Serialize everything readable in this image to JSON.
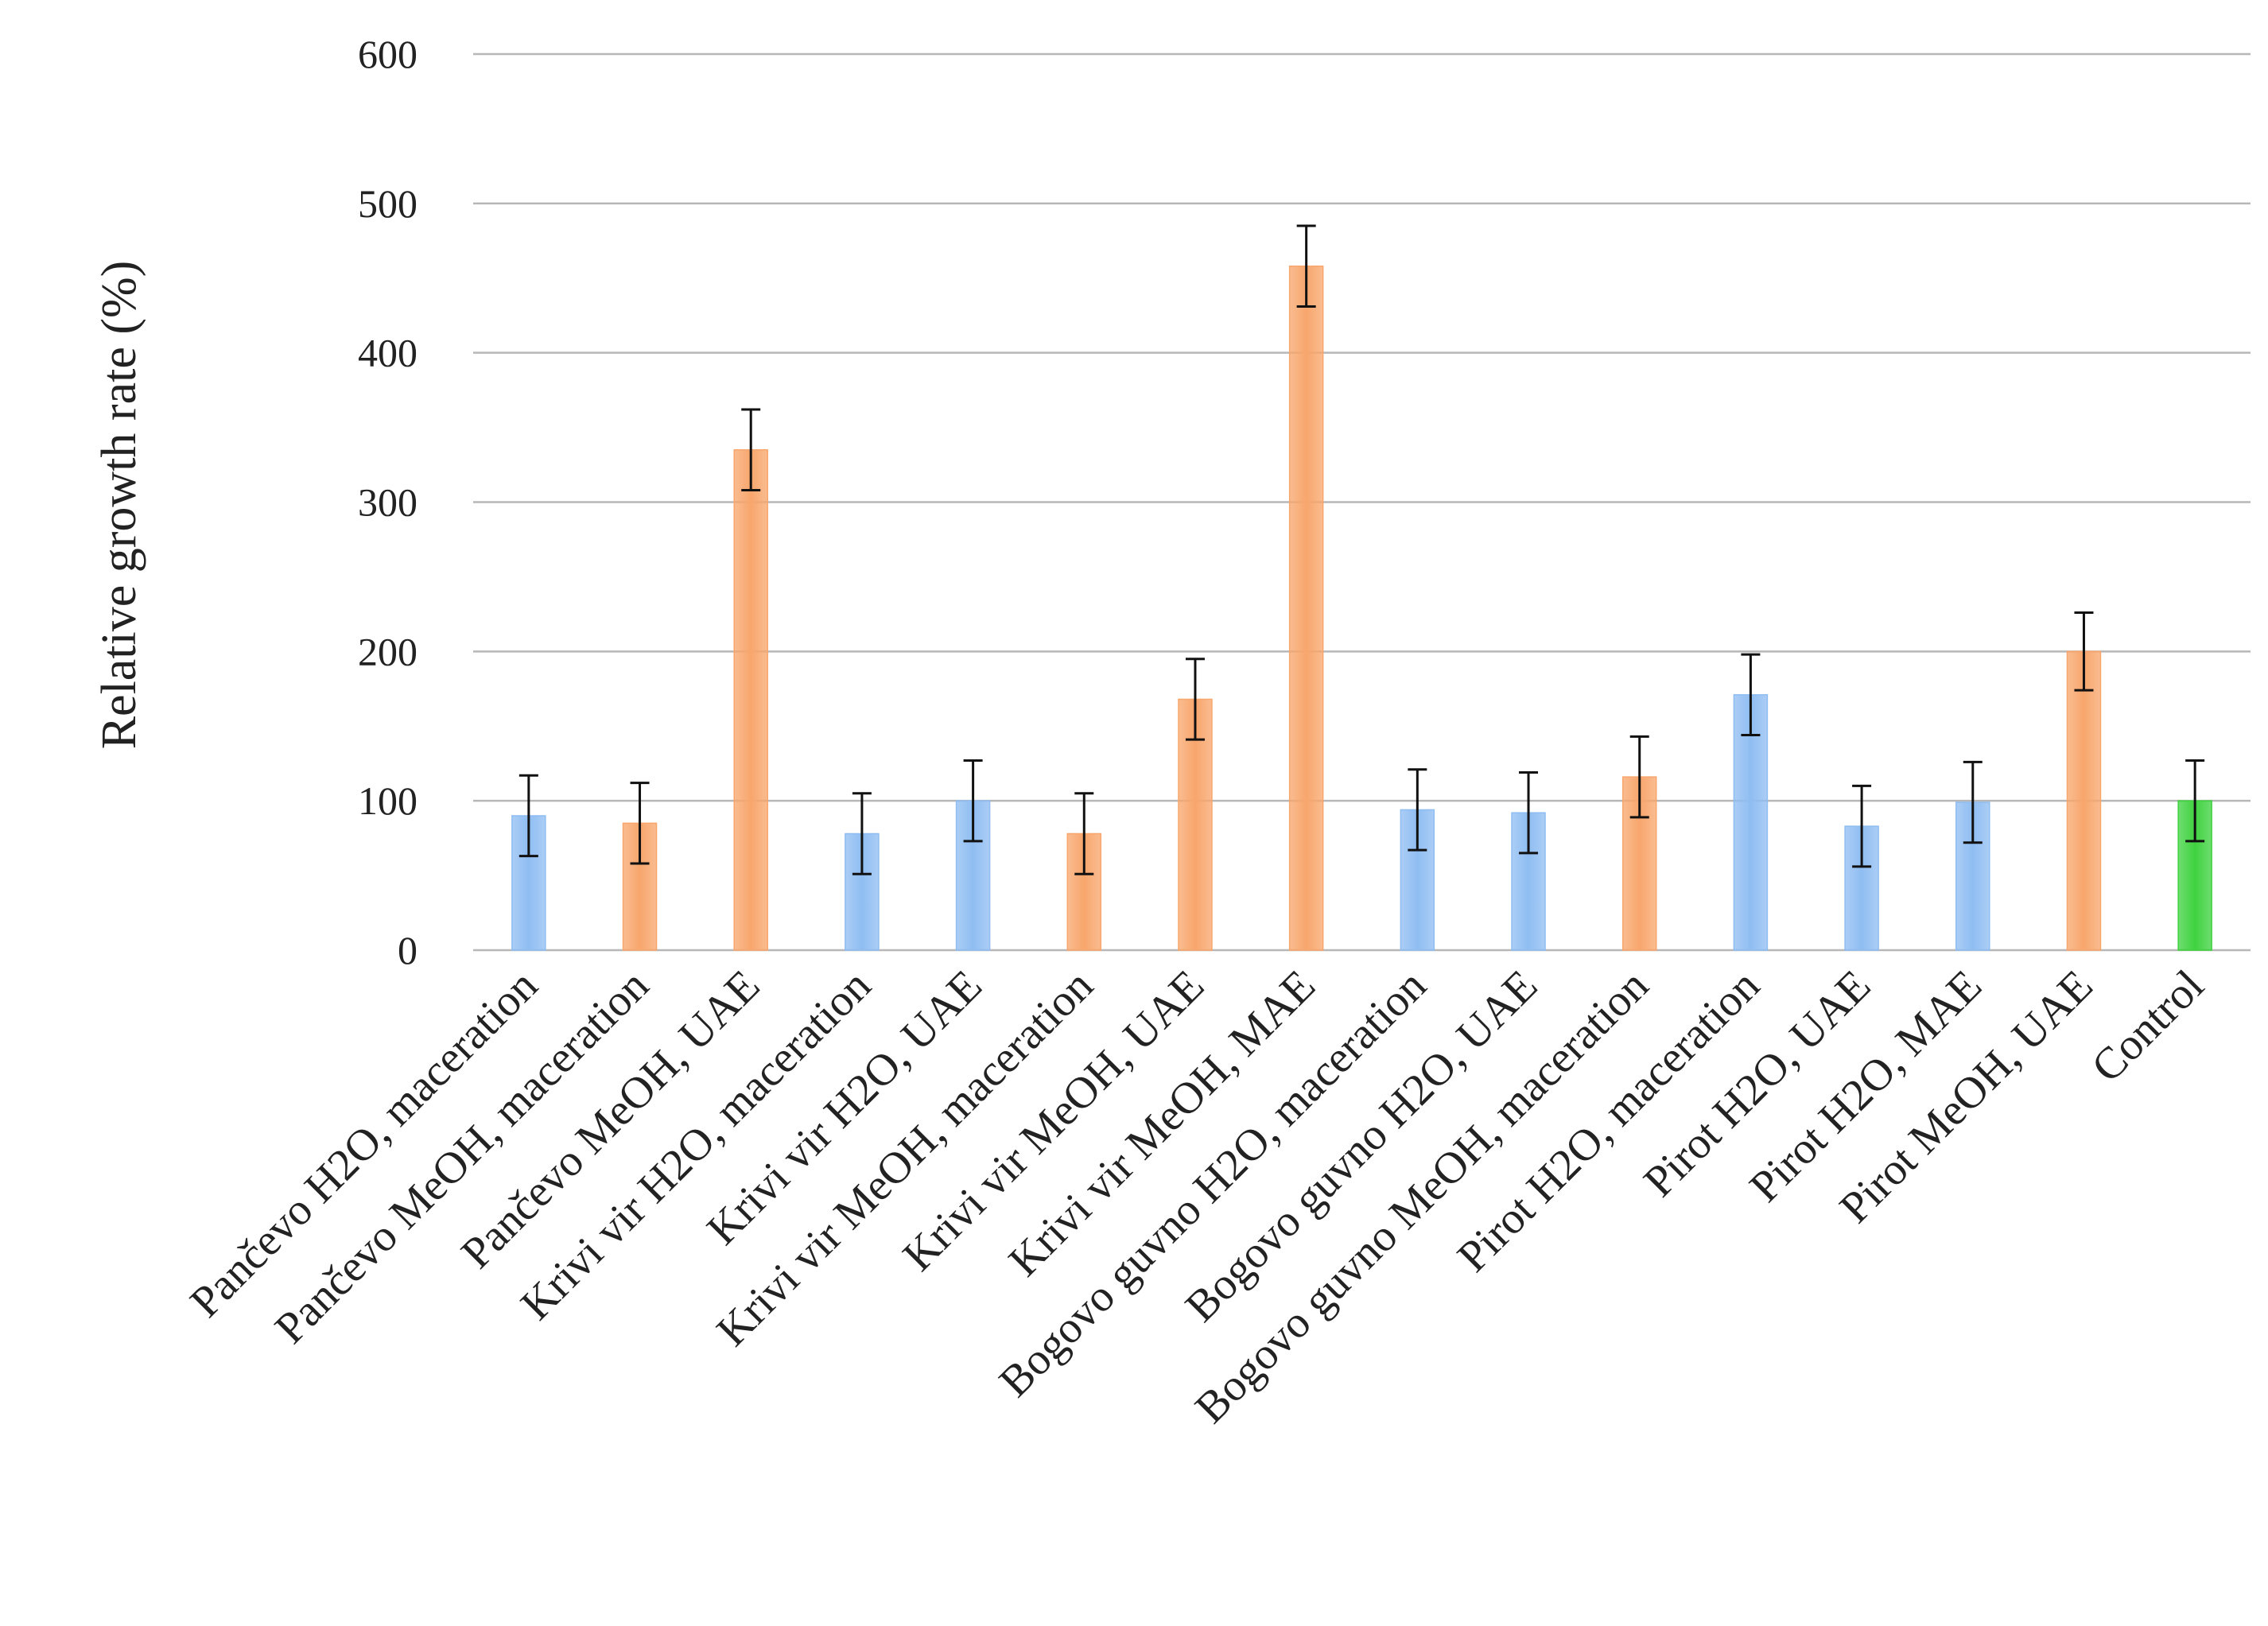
{
  "chart_data": {
    "type": "bar",
    "title": "",
    "xlabel": "",
    "ylabel": "Relative  growth  rate  (%)",
    "ylim": [
      0,
      600
    ],
    "yticks": [
      0,
      100,
      200,
      300,
      400,
      500,
      600
    ],
    "grid": true,
    "categories": [
      "Pančevo H2O, maceration",
      "Pančevo MeOH, maceration",
      "Pančevo MeOH, UAE",
      "Krivi vir H2O, maceration",
      "Krivi vir H2O, UAE",
      "Krivi vir MeOH, maceration",
      "Krivi vir MeOH, UAE",
      "Krivi vir MeOH, MAE",
      "Bogovo guvno H2O, maceration",
      "Bogovo guvno H2O, UAE",
      "Bogovo guvno MeOH, maceration",
      "Pirot H2O, maceration",
      "Pirot H2O, UAE",
      "Pirot H2O, MAE",
      "Pirot MeOH, UAE",
      "Control"
    ],
    "values": [
      90,
      85,
      335,
      78,
      100,
      78,
      168,
      458,
      94,
      92,
      116,
      171,
      83,
      99,
      200,
      100
    ],
    "errors": [
      27,
      27,
      27,
      27,
      27,
      27,
      27,
      27,
      27,
      27,
      27,
      27,
      27,
      27,
      26,
      27
    ],
    "bar_groups": [
      "H2O",
      "MeOH",
      "MeOH",
      "H2O",
      "H2O",
      "MeOH",
      "MeOH",
      "MeOH",
      "H2O",
      "H2O",
      "MeOH",
      "H2O",
      "H2O",
      "H2O",
      "MeOH",
      "Control"
    ],
    "colors": {
      "H2O": "#8fbdf2",
      "MeOH": "#f8a66c",
      "Control": "#3fd23f",
      "grid": "#b7b7b7",
      "error_bar": "#111111",
      "text": "#222222"
    }
  }
}
